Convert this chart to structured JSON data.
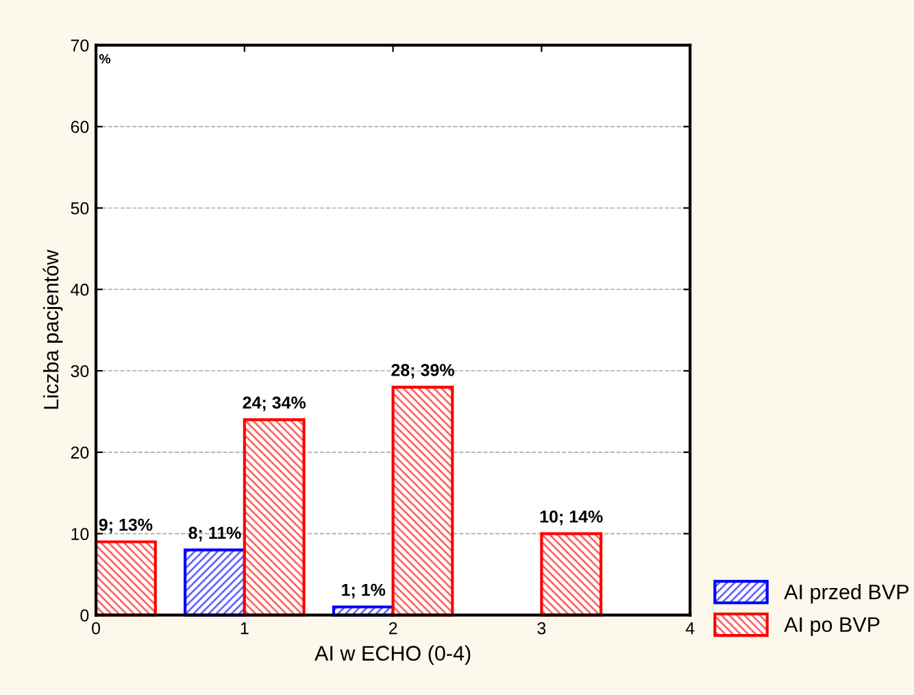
{
  "chart_data": {
    "type": "bar",
    "xlabel": "AI w ECHO (0-4)",
    "ylabel": "Liczba pacjentów",
    "x": [
      0,
      1,
      2,
      3
    ],
    "series": [
      {
        "name": "AI przed BVP",
        "color": "#0000ff",
        "values": [
          null,
          8,
          1,
          null
        ],
        "value_labels": [
          null,
          "8; 11%",
          "1; 1%",
          null
        ]
      },
      {
        "name": "AI po BVP",
        "color": "#ff0000",
        "values": [
          9,
          24,
          28,
          10
        ],
        "value_labels": [
          "9; 13%",
          "24; 34%",
          "28; 39%",
          "10; 14%"
        ]
      }
    ],
    "annotations": [
      "%"
    ],
    "xlim": [
      0,
      4
    ],
    "xticks": [
      0,
      1,
      2,
      3,
      4
    ],
    "ylim": [
      0,
      70
    ],
    "yticks": [
      0,
      10,
      20,
      30,
      40,
      50,
      60,
      70
    ],
    "grid": "y",
    "legend": "bottom right"
  }
}
